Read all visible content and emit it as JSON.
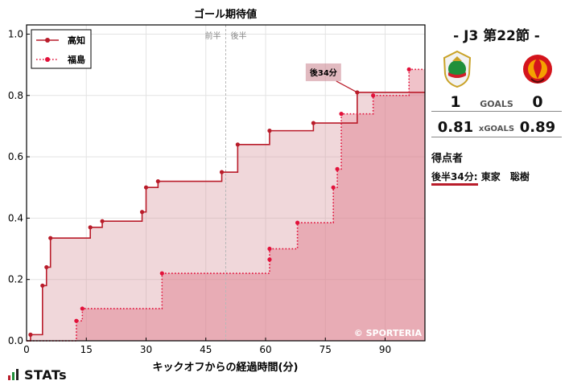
{
  "chart_data": {
    "type": "line",
    "title": "ゴール期待値",
    "xlabel": "キックオフからの経過時間(分)",
    "ylabel": "",
    "xlim": [
      0,
      100
    ],
    "ylim": [
      0,
      1.03
    ],
    "x_ticks": [
      0,
      15,
      30,
      45,
      60,
      75,
      90
    ],
    "y_ticks": [
      0.0,
      0.2,
      0.4,
      0.6,
      0.8,
      1.0
    ],
    "y_tick_labels": [
      "0.0",
      "0.2",
      "0.4",
      "0.6",
      "0.8",
      "1.0"
    ],
    "grid": true,
    "legend_position": "top-left",
    "half_labels": [
      "前半",
      "後半"
    ],
    "halftime_x": 50,
    "watermark": "© SPORTERIA",
    "series": [
      {
        "name": "高知",
        "color": "#b91c2a",
        "line_style": "solid",
        "points": [
          {
            "x": 1,
            "y": 0.02
          },
          {
            "x": 4,
            "y": 0.18
          },
          {
            "x": 5,
            "y": 0.24
          },
          {
            "x": 6,
            "y": 0.335
          },
          {
            "x": 16,
            "y": 0.37
          },
          {
            "x": 19,
            "y": 0.39
          },
          {
            "x": 29,
            "y": 0.42
          },
          {
            "x": 30,
            "y": 0.5
          },
          {
            "x": 33,
            "y": 0.52
          },
          {
            "x": 49,
            "y": 0.55
          },
          {
            "x": 53,
            "y": 0.64
          },
          {
            "x": 61,
            "y": 0.685
          },
          {
            "x": 72,
            "y": 0.71
          },
          {
            "x": 83,
            "y": 0.81
          }
        ],
        "end_x": 100
      },
      {
        "name": "福島",
        "color": "#e2113a",
        "line_style": "dotted",
        "points": [
          {
            "x": 12.5,
            "y": 0.065
          },
          {
            "x": 14,
            "y": 0.105
          },
          {
            "x": 34,
            "y": 0.22
          },
          {
            "x": 61,
            "y": 0.265
          },
          {
            "x": 61,
            "y": 0.3
          },
          {
            "x": 68,
            "y": 0.385
          },
          {
            "x": 77,
            "y": 0.5
          },
          {
            "x": 78,
            "y": 0.56
          },
          {
            "x": 79,
            "y": 0.74
          },
          {
            "x": 87,
            "y": 0.8
          },
          {
            "x": 96,
            "y": 0.885
          }
        ],
        "end_x": 100
      }
    ],
    "annotations": [
      {
        "label": "後34分",
        "x": 83,
        "y": 0.81
      }
    ]
  },
  "match": {
    "title": "- J3 第22節 -",
    "home_goals": "1",
    "away_goals": "0",
    "goals_label": "GOALS",
    "home_xg": "0.81",
    "away_xg": "0.89",
    "xg_label": "xGOALS",
    "home_colors": [
      "#1f8f3a",
      "#d21e2b",
      "#f2f2f2"
    ],
    "away_colors": [
      "#d4141c",
      "#f5a000",
      "#5a0a0a"
    ]
  },
  "scorers": {
    "title": "得点者",
    "items": [
      {
        "time": "後半34分:",
        "team": "東家",
        "player": "聡樹"
      }
    ]
  },
  "brand": {
    "name": "STATs"
  }
}
